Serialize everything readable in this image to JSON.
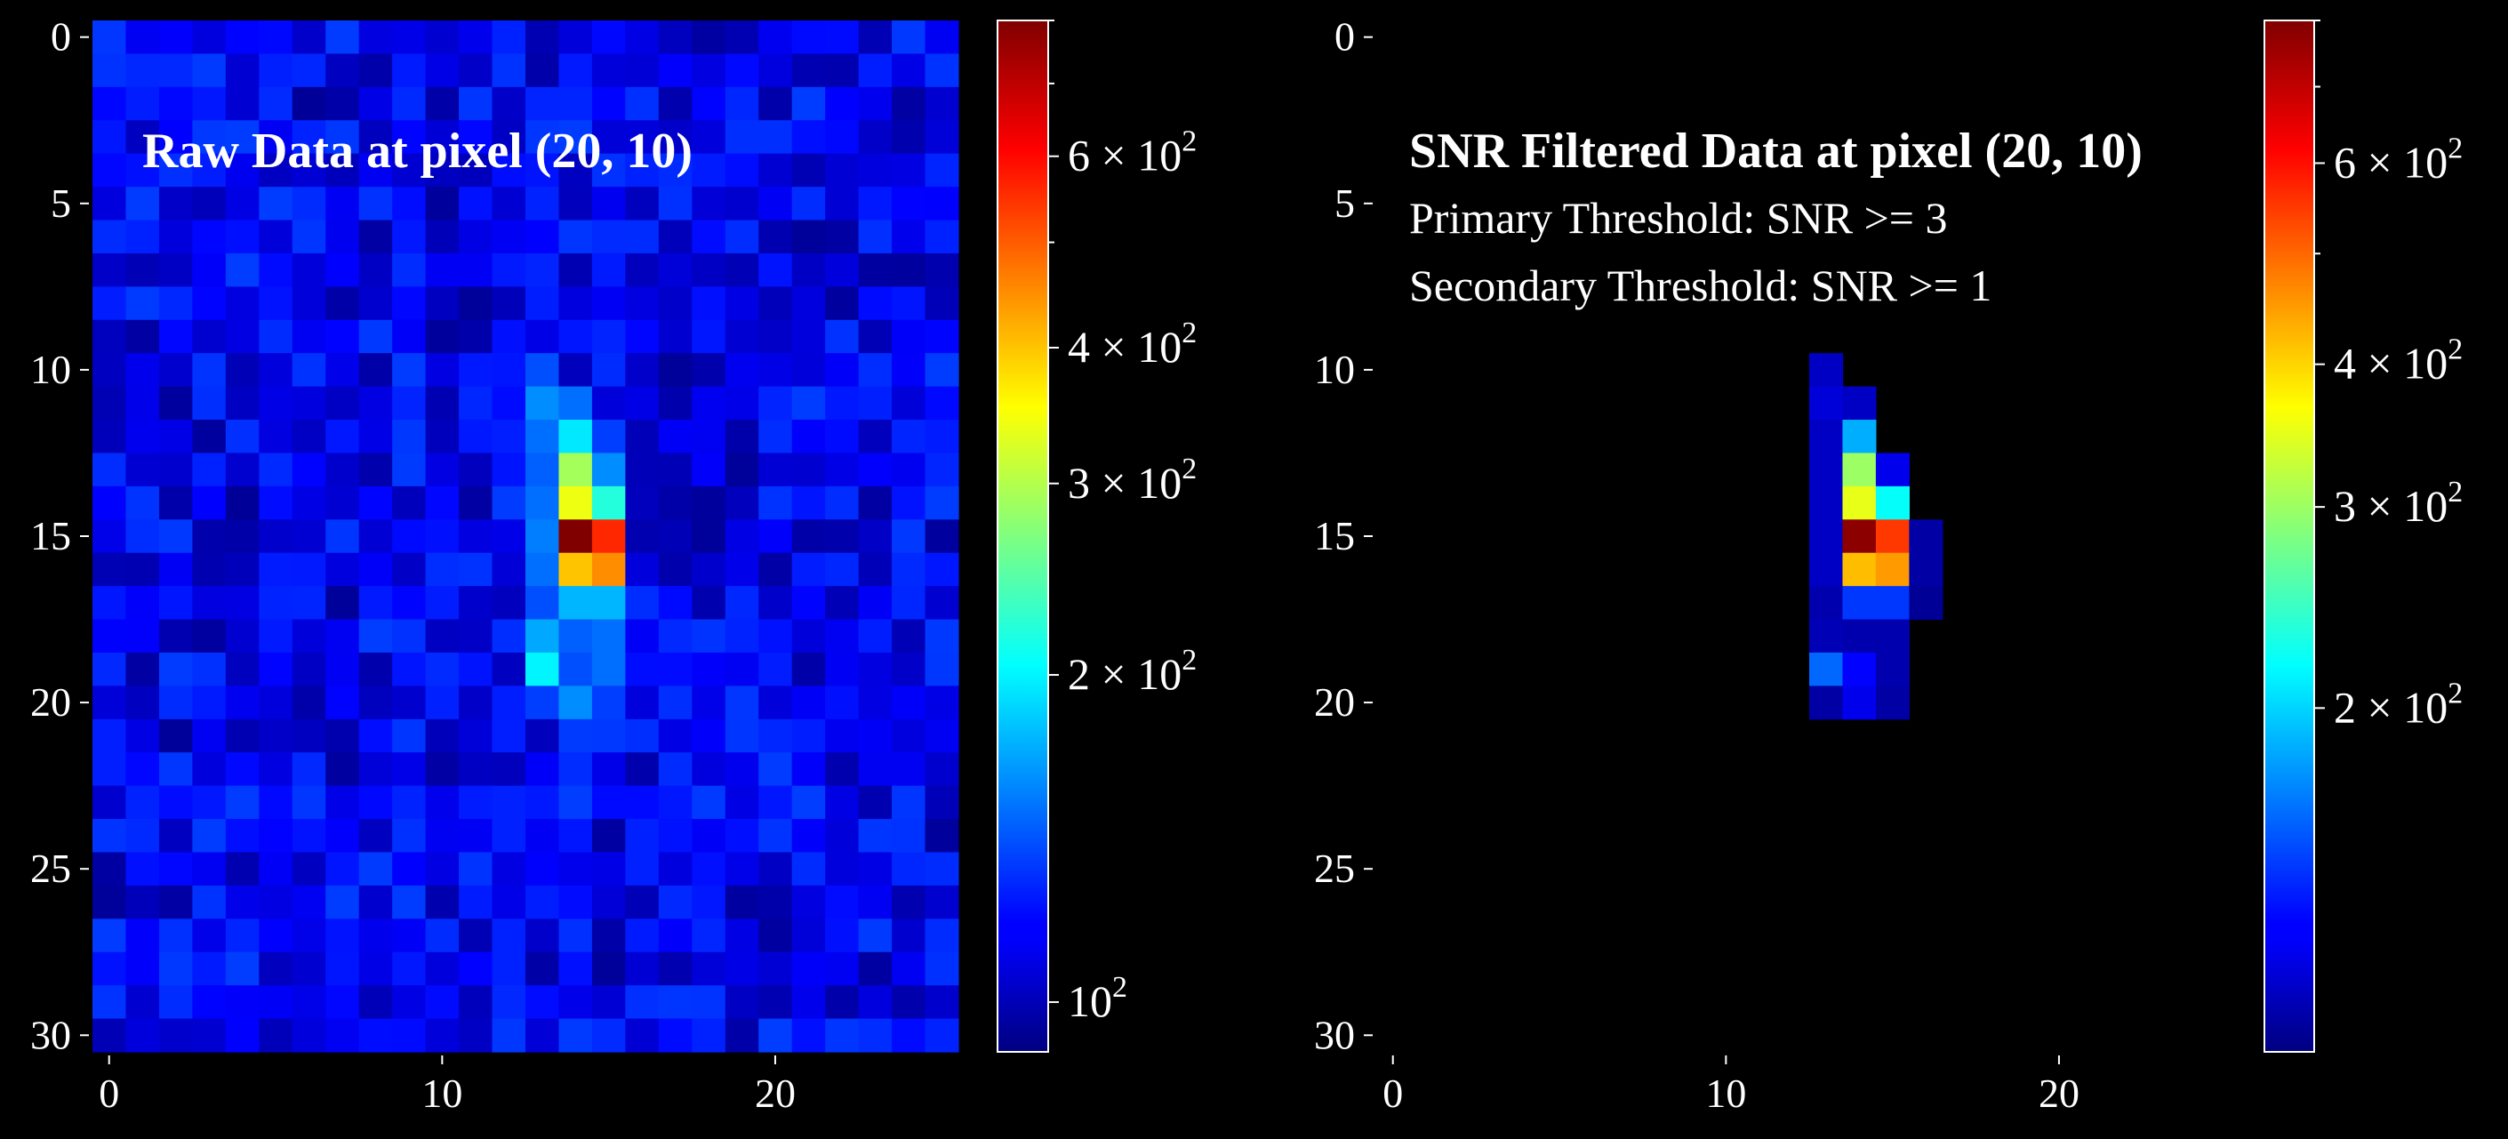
{
  "chart_data": [
    {
      "type": "heatmap",
      "title": "Raw Data at pixel (20, 10)",
      "xlabel": "",
      "ylabel": "",
      "x_ticks": [
        "0",
        "10",
        "20"
      ],
      "y_ticks": [
        "0",
        "5",
        "10",
        "15",
        "20",
        "25",
        "30"
      ],
      "xlim": [
        -0.5,
        25.5
      ],
      "ylim": [
        30.5,
        -0.5
      ],
      "colormap": "jet",
      "color_scale": "log",
      "clim": [
        90,
        800
      ],
      "colorbar_ticks": [
        {
          "value": 100,
          "mantissa": "",
          "exponent": "2",
          "base": "10"
        },
        {
          "value": 200,
          "mantissa": "2",
          "exponent": "2",
          "base": "10"
        },
        {
          "value": 300,
          "mantissa": "3",
          "exponent": "2",
          "base": "10"
        },
        {
          "value": 400,
          "mantissa": "4",
          "exponent": "2",
          "base": "10"
        },
        {
          "value": 600,
          "mantissa": "6",
          "exponent": "2",
          "base": "10"
        }
      ],
      "colorbar_minor_ticks": [
        500,
        700,
        800
      ],
      "background": "random noise ≈ 95–135",
      "source_pixels": [
        {
          "x": 13,
          "y": 10,
          "v": 140
        },
        {
          "x": 13,
          "y": 11,
          "v": 160
        },
        {
          "x": 14,
          "y": 11,
          "v": 150
        },
        {
          "x": 13,
          "y": 12,
          "v": 150
        },
        {
          "x": 14,
          "y": 12,
          "v": 195
        },
        {
          "x": 15,
          "y": 12,
          "v": 135
        },
        {
          "x": 13,
          "y": 13,
          "v": 145
        },
        {
          "x": 14,
          "y": 13,
          "v": 290
        },
        {
          "x": 15,
          "y": 13,
          "v": 160
        },
        {
          "x": 13,
          "y": 14,
          "v": 150
        },
        {
          "x": 14,
          "y": 14,
          "v": 340
        },
        {
          "x": 15,
          "y": 14,
          "v": 220
        },
        {
          "x": 13,
          "y": 15,
          "v": 155
        },
        {
          "x": 14,
          "y": 15,
          "v": 800
        },
        {
          "x": 15,
          "y": 15,
          "v": 560
        },
        {
          "x": 13,
          "y": 16,
          "v": 150
        },
        {
          "x": 14,
          "y": 16,
          "v": 400
        },
        {
          "x": 15,
          "y": 16,
          "v": 450
        },
        {
          "x": 13,
          "y": 17,
          "v": 140
        },
        {
          "x": 14,
          "y": 17,
          "v": 175
        },
        {
          "x": 15,
          "y": 17,
          "v": 175
        },
        {
          "x": 13,
          "y": 18,
          "v": 170
        },
        {
          "x": 14,
          "y": 18,
          "v": 145
        },
        {
          "x": 15,
          "y": 18,
          "v": 150
        },
        {
          "x": 13,
          "y": 19,
          "v": 200
        },
        {
          "x": 14,
          "y": 19,
          "v": 140
        },
        {
          "x": 15,
          "y": 19,
          "v": 150
        },
        {
          "x": 13,
          "y": 20,
          "v": 135
        },
        {
          "x": 14,
          "y": 20,
          "v": 160
        },
        {
          "x": 15,
          "y": 20,
          "v": 135
        }
      ]
    },
    {
      "type": "heatmap",
      "title": "SNR Filtered Data at pixel (20, 10)",
      "subtitle_lines": [
        "Primary Threshold: SNR >= 3",
        "Secondary Threshold: SNR >= 1"
      ],
      "xlabel": "",
      "ylabel": "",
      "x_ticks": [
        "0",
        "10",
        "20"
      ],
      "y_ticks": [
        "0",
        "5",
        "10",
        "15",
        "20",
        "25",
        "30"
      ],
      "xlim": [
        -0.5,
        25.5
      ],
      "ylim": [
        30.5,
        -0.5
      ],
      "colormap": "jet",
      "color_scale": "log",
      "clim": [
        100,
        800
      ],
      "colorbar_ticks": [
        {
          "value": 200,
          "mantissa": "2",
          "exponent": "2",
          "base": "10"
        },
        {
          "value": 300,
          "mantissa": "3",
          "exponent": "2",
          "base": "10"
        },
        {
          "value": 400,
          "mantissa": "4",
          "exponent": "2",
          "base": "10"
        },
        {
          "value": 600,
          "mantissa": "6",
          "exponent": "2",
          "base": "10"
        }
      ],
      "colorbar_minor_ticks": [
        500,
        700,
        800
      ],
      "background": "masked (black)",
      "pixels": [
        {
          "x": 13,
          "y": 10,
          "v": 115
        },
        {
          "x": 13,
          "y": 11,
          "v": 120
        },
        {
          "x": 14,
          "y": 11,
          "v": 115
        },
        {
          "x": 13,
          "y": 12,
          "v": 115
        },
        {
          "x": 14,
          "y": 12,
          "v": 185
        },
        {
          "x": 13,
          "y": 13,
          "v": 115
        },
        {
          "x": 14,
          "y": 13,
          "v": 300
        },
        {
          "x": 15,
          "y": 13,
          "v": 125
        },
        {
          "x": 13,
          "y": 14,
          "v": 115
        },
        {
          "x": 14,
          "y": 14,
          "v": 350
        },
        {
          "x": 15,
          "y": 14,
          "v": 220
        },
        {
          "x": 13,
          "y": 15,
          "v": 115
        },
        {
          "x": 14,
          "y": 15,
          "v": 780
        },
        {
          "x": 15,
          "y": 15,
          "v": 550
        },
        {
          "x": 16,
          "y": 15,
          "v": 108
        },
        {
          "x": 13,
          "y": 16,
          "v": 115
        },
        {
          "x": 14,
          "y": 16,
          "v": 420
        },
        {
          "x": 15,
          "y": 16,
          "v": 450
        },
        {
          "x": 16,
          "y": 16,
          "v": 108
        },
        {
          "x": 13,
          "y": 17,
          "v": 110
        },
        {
          "x": 14,
          "y": 17,
          "v": 145
        },
        {
          "x": 15,
          "y": 17,
          "v": 145
        },
        {
          "x": 16,
          "y": 17,
          "v": 105
        },
        {
          "x": 13,
          "y": 18,
          "v": 112
        },
        {
          "x": 14,
          "y": 18,
          "v": 110
        },
        {
          "x": 15,
          "y": 18,
          "v": 110
        },
        {
          "x": 13,
          "y": 19,
          "v": 160
        },
        {
          "x": 14,
          "y": 19,
          "v": 130
        },
        {
          "x": 15,
          "y": 19,
          "v": 110
        },
        {
          "x": 13,
          "y": 20,
          "v": 108
        },
        {
          "x": 14,
          "y": 20,
          "v": 125
        },
        {
          "x": 15,
          "y": 20,
          "v": 108
        }
      ]
    }
  ]
}
